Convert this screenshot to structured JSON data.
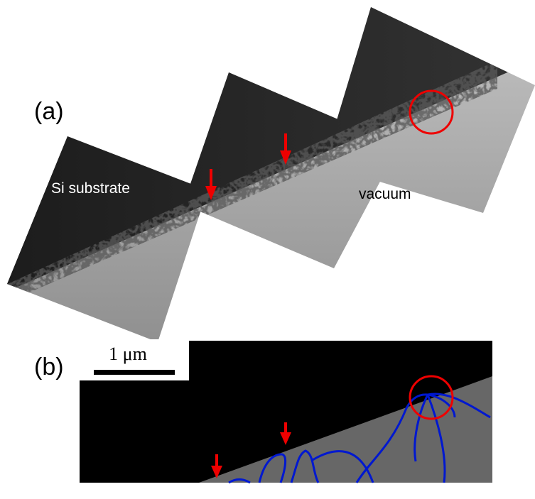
{
  "panel_a": {
    "label": "(a)",
    "left_label": "Si substrate",
    "right_label": "vacuum"
  },
  "panel_b": {
    "label": "(b)",
    "scale_bar": "1 μm"
  }
}
